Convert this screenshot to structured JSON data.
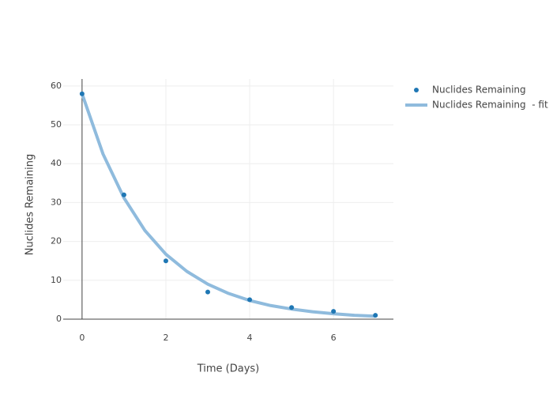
{
  "chart_data": {
    "type": "scatter",
    "x_label": "Time (Days)",
    "y_label": "Nuclides Remaining",
    "xlim": [
      -0.45,
      7.43
    ],
    "ylim": [
      0,
      61.8
    ],
    "xticks": [
      0,
      2,
      4,
      6
    ],
    "yticks": [
      0,
      10,
      20,
      30,
      40,
      50,
      60
    ],
    "grid": true,
    "legend": "top-right",
    "series": [
      {
        "name": "Nuclides Remaining",
        "mode": "markers",
        "color": "#1f77b4",
        "x": [
          0,
          1,
          2,
          3,
          4,
          5,
          6,
          7
        ],
        "values": [
          58,
          32,
          15,
          7,
          5,
          3,
          2,
          1
        ]
      },
      {
        "name": "Nuclides Remaining  - fit",
        "mode": "line",
        "color": "#8fbbdd",
        "x": [
          0,
          0.5,
          1,
          1.5,
          2,
          2.5,
          3,
          3.5,
          4,
          4.5,
          5,
          5.5,
          6,
          6.5,
          7
        ],
        "values": [
          58,
          42.5,
          31.2,
          22.8,
          16.7,
          12.3,
          9.0,
          6.6,
          4.8,
          3.5,
          2.6,
          1.9,
          1.4,
          1.0,
          0.76
        ]
      }
    ]
  }
}
